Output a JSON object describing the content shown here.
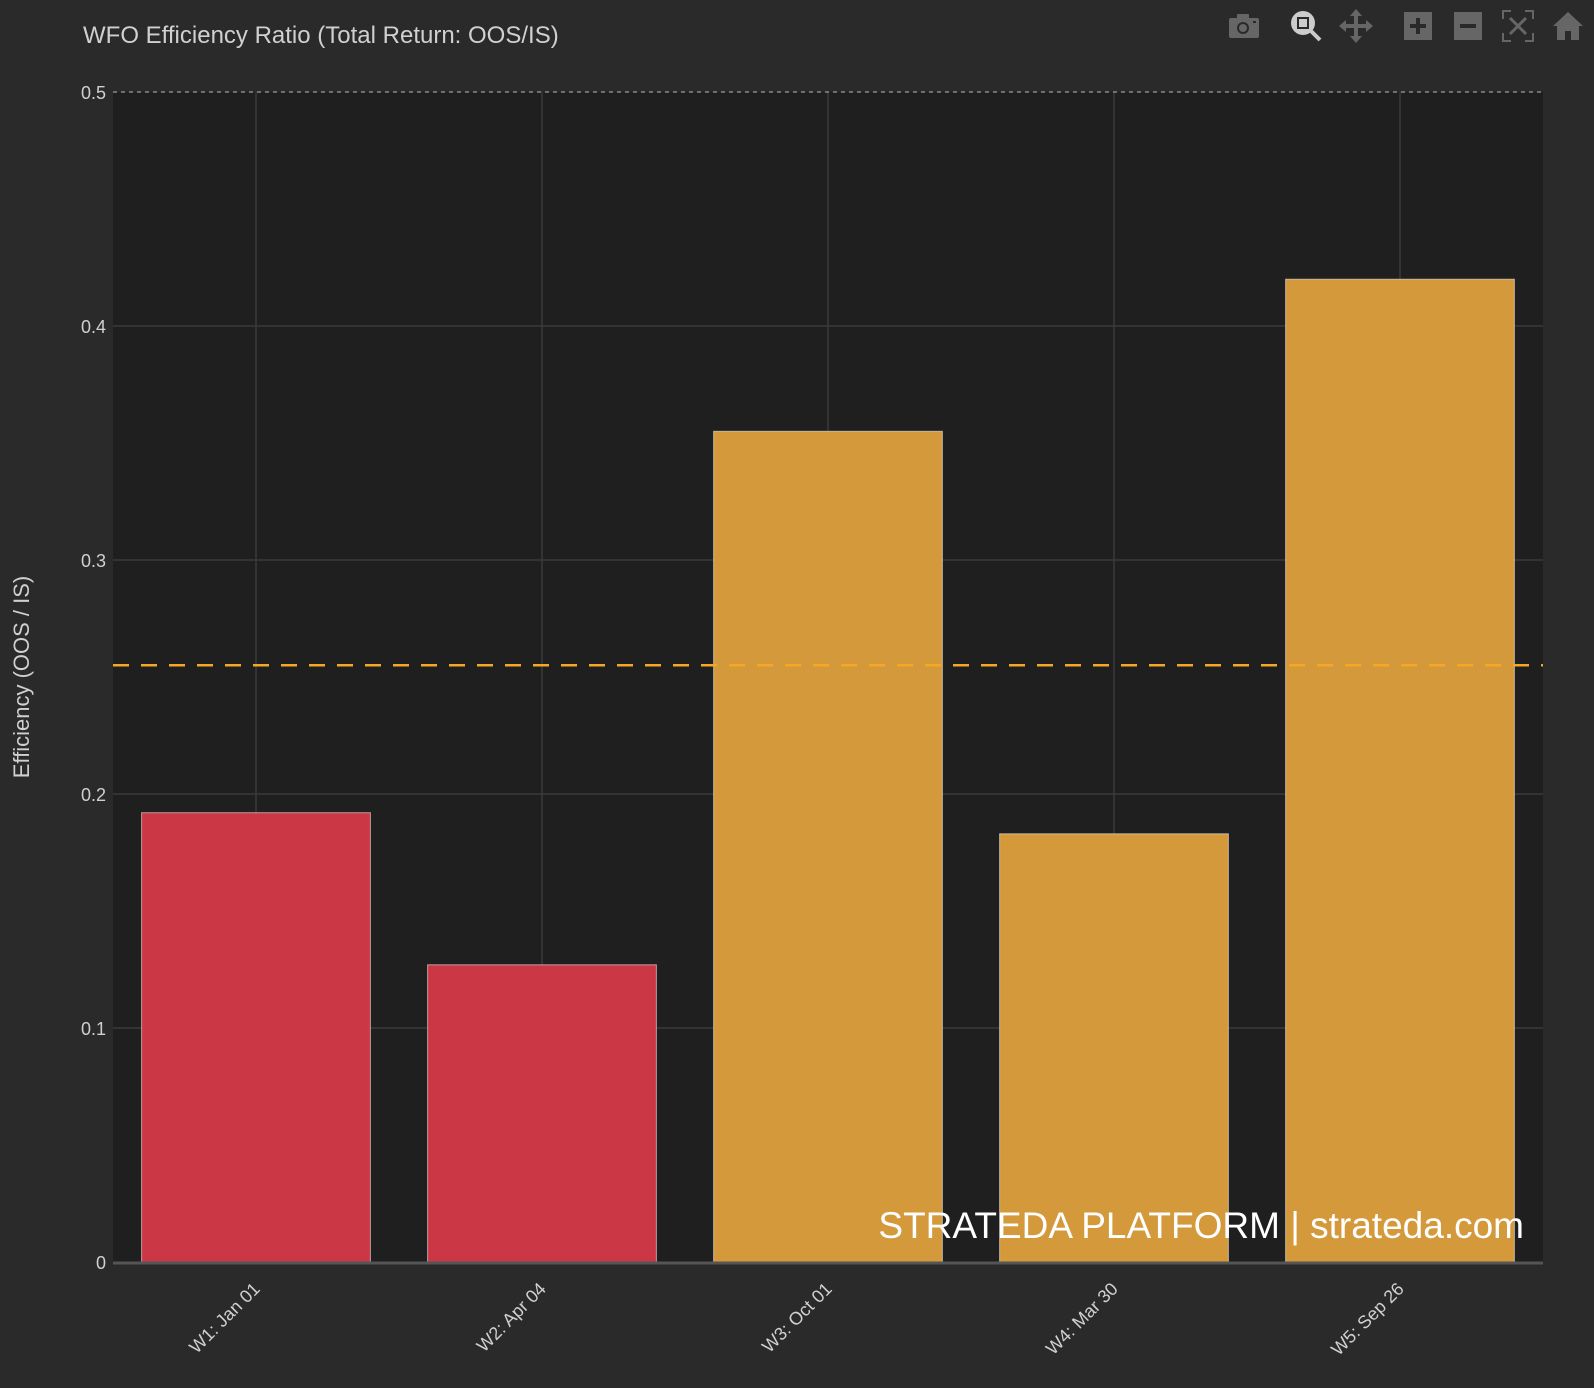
{
  "title": "WFO Efficiency Ratio (Total Return: OOS/IS)",
  "toolbar": {
    "icons": [
      "camera-icon",
      "zoom-icon",
      "pan-icon",
      "zoom-in-icon",
      "zoom-out-icon",
      "autoscale-icon",
      "home-icon"
    ]
  },
  "watermark": "STRATEDA PLATFORM | strateda.com",
  "chart_data": {
    "type": "bar",
    "title": "WFO Efficiency Ratio (Total Return: OOS/IS)",
    "xlabel": "",
    "ylabel": "Efficiency (OOS / IS)",
    "categories": [
      "W1: Jan 01",
      "W2: Apr 04",
      "W3: Oct 01",
      "W4: Mar 30",
      "W5: Sep 26"
    ],
    "values": [
      0.192,
      0.127,
      0.355,
      0.183,
      0.42
    ],
    "bar_colors": [
      "#dc3545",
      "#dc3545",
      "#e8a33a",
      "#e8a33a",
      "#e8a33a"
    ],
    "ylim": [
      0,
      0.5
    ],
    "yticks": [
      0,
      0.1,
      0.2,
      0.3,
      0.4,
      0.5
    ],
    "ytick_labels": [
      "0",
      "0.1",
      "0.2",
      "0.3",
      "0.4",
      "0.5"
    ],
    "reference_lines": [
      {
        "y": 0.5,
        "style": "dotted",
        "color": "#888888"
      },
      {
        "y": 0.255,
        "style": "dashed",
        "color": "#f5a623"
      }
    ],
    "grid": true,
    "colors": {
      "red": "#cc3745",
      "orange": "#d4993a",
      "plot_bg": "#1f1f1f",
      "paper_bg": "#2a2a2a"
    }
  }
}
